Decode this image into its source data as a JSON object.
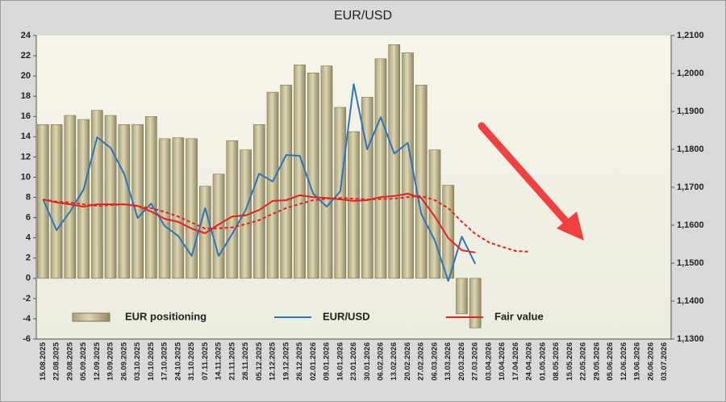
{
  "chart_data": {
    "type": "combo",
    "title": "EUR/USD",
    "legend": "bottom",
    "categories": [
      "15.08.2025",
      "22.08.2025",
      "29.08.2025",
      "05.09.2025",
      "12.09.2025",
      "19.09.2025",
      "26.09.2025",
      "03.10.2025",
      "10.10.2025",
      "17.10.2025",
      "24.10.2025",
      "31.10.2025",
      "07.11.2025",
      "14.11.2025",
      "21.11.2025",
      "28.11.2025",
      "05.12.2025",
      "12.12.2025",
      "19.12.2025",
      "26.12.2025",
      "02.01.2026",
      "09.01.2026",
      "16.01.2026",
      "23.01.2026",
      "30.01.2026",
      "06.02.2026",
      "13.02.2026",
      "20.02.2026",
      "27.02.2026",
      "06.03.2026",
      "13.03.2026",
      "20.03.2026",
      "27.03.2026",
      "03.04.2026",
      "10.04.2026",
      "17.04.2026",
      "24.04.2026",
      "01.05.2026",
      "08.05.2026",
      "15.05.2026",
      "22.05.2026",
      "29.05.2026",
      "05.06.2026",
      "12.06.2026",
      "19.06.2026",
      "26.06.2026",
      "03.07.2026"
    ],
    "ylim": [
      -6,
      24
    ],
    "yticks": [
      -6,
      -4,
      -2,
      0,
      2,
      4,
      6,
      8,
      10,
      12,
      14,
      16,
      18,
      20,
      22,
      24
    ],
    "y2lim": [
      1.13,
      1.21
    ],
    "y2ticks": [
      {
        "value": 1.13,
        "label": "1,1300"
      },
      {
        "value": 1.14,
        "label": "1,1400"
      },
      {
        "value": 1.15,
        "label": "1,1500"
      },
      {
        "value": 1.16,
        "label": "1,1600"
      },
      {
        "value": 1.17,
        "label": "1,1700"
      },
      {
        "value": 1.18,
        "label": "1,1800"
      },
      {
        "value": 1.19,
        "label": "1,1900"
      },
      {
        "value": 1.2,
        "label": "1,2000"
      },
      {
        "value": 1.21,
        "label": "1,2100"
      }
    ],
    "series": [
      {
        "name": "EUR positioning",
        "type": "bar",
        "color": "#c9c39c",
        "values": [
          15.2,
          15.2,
          16.1,
          15.7,
          16.6,
          16.1,
          15.2,
          15.2,
          16.0,
          13.8,
          13.9,
          13.8,
          9.1,
          10.3,
          13.6,
          12.7,
          15.2,
          18.4,
          19.1,
          21.1,
          20.3,
          21.0,
          16.9,
          14.5,
          17.9,
          21.7,
          23.1,
          22.3,
          19.1,
          12.7,
          9.2,
          -3.5,
          -4.9,
          null,
          null,
          null,
          null,
          null,
          null,
          null,
          null,
          null,
          null,
          null,
          null,
          null,
          null
        ]
      },
      {
        "name": "EUR/USD",
        "type": "line",
        "color": "#2e75b6",
        "axis": "y2",
        "values": [
          1.1668,
          1.1587,
          1.1636,
          1.1694,
          1.1832,
          1.1804,
          1.1736,
          1.1619,
          1.1657,
          1.1598,
          1.1572,
          1.1519,
          1.1645,
          1.1519,
          1.1577,
          1.164,
          1.1736,
          1.1715,
          1.1785,
          1.1783,
          1.1683,
          1.1649,
          1.1689,
          1.1972,
          1.18,
          1.1885,
          1.1789,
          1.1817,
          1.163,
          1.156,
          1.1453,
          1.157,
          1.1498,
          null,
          null,
          null,
          null,
          null,
          null,
          null,
          null,
          null,
          null,
          null,
          null,
          null,
          null
        ]
      },
      {
        "name": "Fair value",
        "type": "line",
        "color": "#e8201c",
        "axis": "y2",
        "values": [
          1.1668,
          1.166,
          1.1655,
          1.1649,
          1.1655,
          1.1655,
          1.1655,
          1.1651,
          1.1636,
          1.1617,
          1.1609,
          1.1591,
          1.1579,
          1.1602,
          1.1623,
          1.1626,
          1.164,
          1.1664,
          1.1666,
          1.1679,
          1.1674,
          1.1672,
          1.1668,
          1.1664,
          1.1666,
          1.1674,
          1.1677,
          1.1683,
          1.1672,
          1.1623,
          1.1566,
          1.1534,
          1.1528,
          null,
          null,
          null,
          null,
          null,
          null,
          null,
          null,
          null,
          null,
          null,
          null,
          null,
          null
        ]
      },
      {
        "type": "line",
        "color": "#e8201c",
        "axis": "y2",
        "dash": true,
        "values": [
          1.1668,
          1.1662,
          1.166,
          1.1655,
          1.1651,
          1.1653,
          1.1655,
          1.165,
          1.1645,
          1.1635,
          1.1623,
          1.1607,
          1.1591,
          1.1592,
          1.1594,
          1.1603,
          1.1613,
          1.163,
          1.1645,
          1.1656,
          1.1666,
          1.167,
          1.1672,
          1.167,
          1.1668,
          1.1669,
          1.167,
          1.1674,
          1.1677,
          1.1666,
          1.1645,
          1.1609,
          1.1577,
          1.1555,
          1.1543,
          1.1532,
          1.153,
          null,
          null,
          null,
          null,
          null,
          null,
          null,
          null,
          null,
          null
        ]
      }
    ]
  }
}
